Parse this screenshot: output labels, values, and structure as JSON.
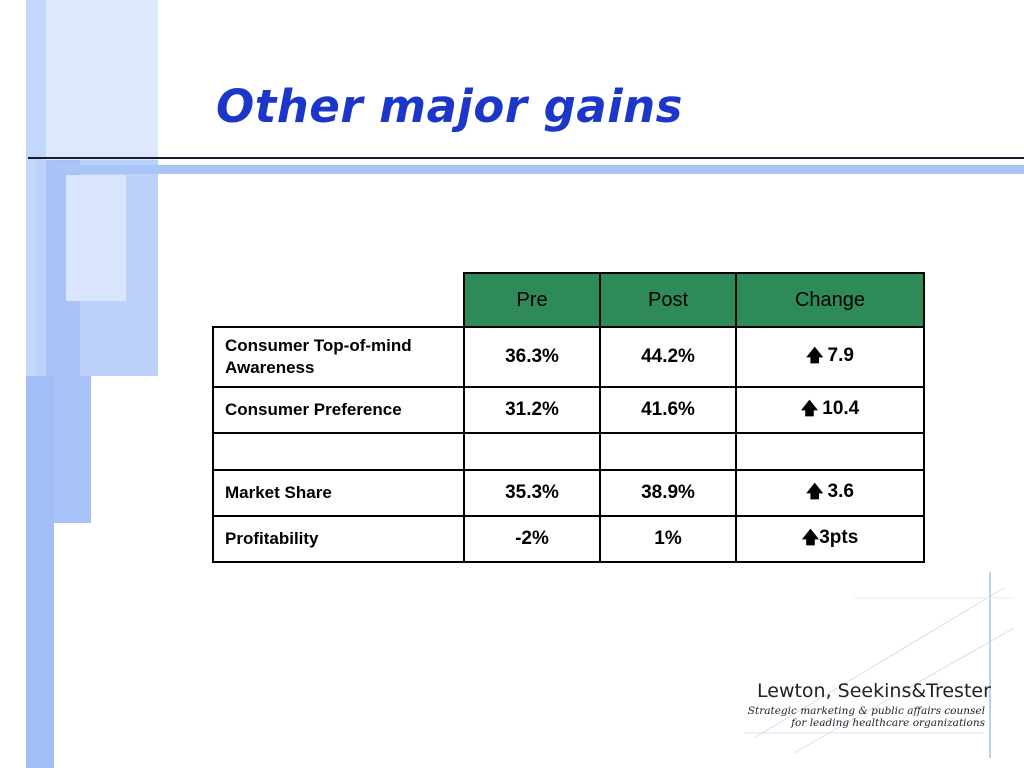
{
  "slide": {
    "title": "Other major gains"
  },
  "table": {
    "headers": [
      "Pre",
      "Post",
      "Change"
    ],
    "rows": [
      {
        "label": "Consumer Top-of-mind Awareness",
        "pre": "36.3%",
        "post": "44.2%",
        "change": "7.9"
      },
      {
        "label": "Consumer Preference",
        "pre": "31.2%",
        "post": "41.6%",
        "change": "10.4"
      },
      {
        "label": "",
        "pre": "",
        "post": "",
        "change": ""
      },
      {
        "label": "Market Share",
        "pre": "35.3%",
        "post": "38.9%",
        "change": "3.6"
      },
      {
        "label": "Profitability",
        "pre": "-2%",
        "post": "1%",
        "change": "3pts"
      }
    ],
    "header_color": "#2e8b57",
    "change_icon": "up-arrow-icon"
  },
  "logo": {
    "name": "Lewton, Seekins&Trester",
    "tagline_line1": "Strategic marketing & public affairs counsel",
    "tagline_line2": "for leading healthcare organizations"
  },
  "colors": {
    "title": "#1b36c9",
    "accent_light": "#a9c4f6"
  }
}
